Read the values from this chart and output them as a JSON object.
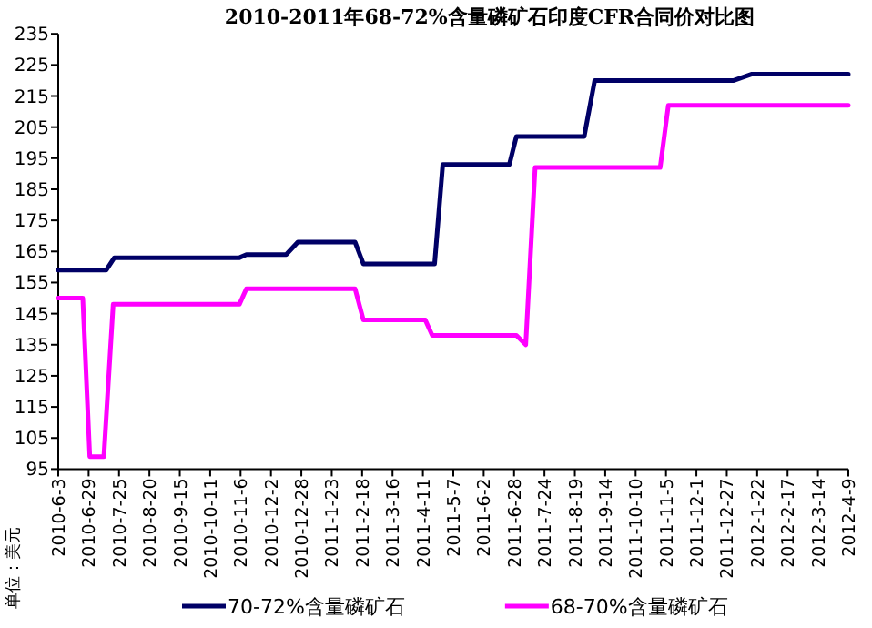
{
  "chart_data": {
    "type": "line",
    "title": "2010-2011年68-72%含量磷矿石印度CFR合同价对比图",
    "ylabel": "单位：美元",
    "xlim": [
      "2010-06-03",
      "2012-04-09"
    ],
    "ylim": [
      95,
      235
    ],
    "xticks": [
      {
        "value": "2010-06-03",
        "label": "2010-6-3"
      },
      {
        "value": "2010-06-29",
        "label": "2010-6-29"
      },
      {
        "value": "2010-07-25",
        "label": "2010-7-25"
      },
      {
        "value": "2010-08-20",
        "label": "2010-8-20"
      },
      {
        "value": "2010-09-15",
        "label": "2010-9-15"
      },
      {
        "value": "2010-10-11",
        "label": "2010-10-11"
      },
      {
        "value": "2010-11-06",
        "label": "2010-11-6"
      },
      {
        "value": "2010-12-02",
        "label": "2010-12-2"
      },
      {
        "value": "2010-12-28",
        "label": "2010-12-28"
      },
      {
        "value": "2011-01-23",
        "label": "2011-1-23"
      },
      {
        "value": "2011-02-18",
        "label": "2011-2-18"
      },
      {
        "value": "2011-03-16",
        "label": "2011-3-16"
      },
      {
        "value": "2011-04-11",
        "label": "2011-4-11"
      },
      {
        "value": "2011-05-07",
        "label": "2011-5-7"
      },
      {
        "value": "2011-06-02",
        "label": "2011-6-2"
      },
      {
        "value": "2011-06-28",
        "label": "2011-6-28"
      },
      {
        "value": "2011-07-24",
        "label": "2011-7-24"
      },
      {
        "value": "2011-08-19",
        "label": "2011-8-19"
      },
      {
        "value": "2011-09-14",
        "label": "2011-9-14"
      },
      {
        "value": "2011-10-10",
        "label": "2011-10-10"
      },
      {
        "value": "2011-11-05",
        "label": "2011-11-5"
      },
      {
        "value": "2011-12-01",
        "label": "2011-12-1"
      },
      {
        "value": "2011-12-27",
        "label": "2011-12-27"
      },
      {
        "value": "2012-01-22",
        "label": "2012-1-22"
      },
      {
        "value": "2012-02-17",
        "label": "2012-2-17"
      },
      {
        "value": "2012-03-14",
        "label": "2012-3-14"
      },
      {
        "value": "2012-04-09",
        "label": "2012-4-9"
      }
    ],
    "yticks": [
      95,
      105,
      115,
      125,
      135,
      145,
      155,
      165,
      175,
      185,
      195,
      205,
      215,
      225,
      235
    ],
    "grid": false,
    "legend": "bottom",
    "marker": "none",
    "line_style": "solid",
    "series": [
      {
        "name": "70-72%含量磷矿石",
        "color": "#000066",
        "x": [
          "2010-06-03",
          "2010-07-14",
          "2010-07-21",
          "2010-11-05",
          "2010-11-11",
          "2010-12-15",
          "2010-12-25",
          "2011-02-12",
          "2011-02-19",
          "2011-04-21",
          "2011-04-28",
          "2011-06-24",
          "2011-06-30",
          "2011-08-27",
          "2011-09-05",
          "2012-01-02",
          "2012-01-17",
          "2012-04-09"
        ],
        "values": [
          159,
          159,
          163,
          163,
          164,
          164,
          168,
          168,
          161,
          161,
          193,
          193,
          202,
          202,
          220,
          220,
          222,
          222
        ]
      },
      {
        "name": "68-70%含量磷矿石",
        "color": "#ff00ff",
        "x": [
          "2010-06-03",
          "2010-06-24",
          "2010-06-30",
          "2010-07-12",
          "2010-07-20",
          "2010-11-05",
          "2010-11-11",
          "2011-02-12",
          "2011-02-19",
          "2011-04-13",
          "2011-04-19",
          "2011-06-30",
          "2011-07-08",
          "2011-07-16",
          "2011-10-31",
          "2011-11-07",
          "2012-04-09"
        ],
        "values": [
          150,
          150,
          99,
          99,
          148,
          148,
          153,
          153,
          143,
          143,
          138,
          138,
          135,
          192,
          192,
          212,
          212
        ]
      }
    ]
  }
}
